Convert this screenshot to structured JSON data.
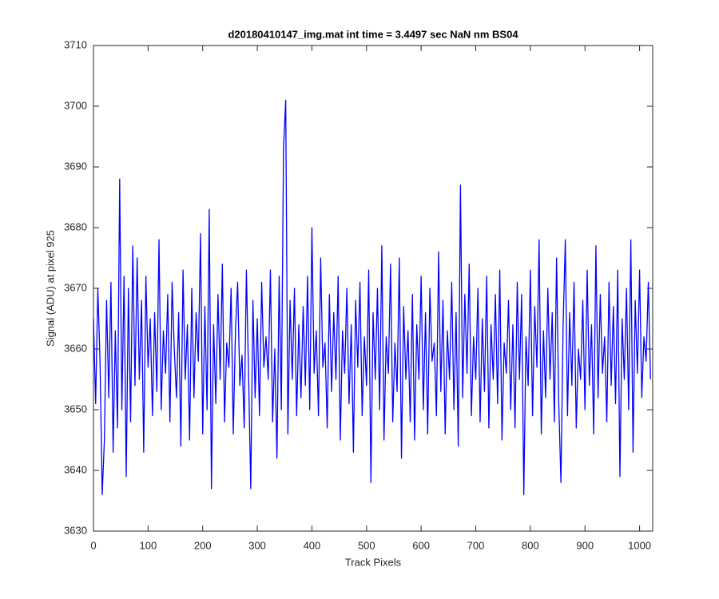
{
  "chart_data": {
    "type": "line",
    "title": "d20180410147_img.mat int time = 3.4497 sec  NaN nm BS04",
    "x_label": "Track Pixels",
    "y_label": "Signal (ADU) at pixel 925",
    "xlim": [
      0,
      1024
    ],
    "ylim": [
      3630,
      3710
    ],
    "xticks": [
      0,
      100,
      200,
      300,
      400,
      500,
      600,
      700,
      800,
      900,
      1000
    ],
    "yticks": [
      3630,
      3640,
      3650,
      3660,
      3670,
      3680,
      3690,
      3700,
      3710
    ],
    "grid": false,
    "x": [
      0,
      4,
      8,
      12,
      16,
      20,
      24,
      28,
      32,
      36,
      40,
      44,
      48,
      52,
      56,
      60,
      64,
      68,
      72,
      76,
      80,
      84,
      88,
      92,
      96,
      100,
      104,
      108,
      112,
      116,
      120,
      124,
      128,
      132,
      136,
      140,
      144,
      148,
      152,
      156,
      160,
      164,
      168,
      172,
      176,
      180,
      184,
      188,
      192,
      196,
      200,
      204,
      208,
      212,
      216,
      220,
      224,
      228,
      232,
      236,
      240,
      244,
      248,
      252,
      256,
      260,
      264,
      268,
      272,
      276,
      280,
      284,
      288,
      292,
      296,
      300,
      304,
      308,
      312,
      316,
      320,
      324,
      328,
      332,
      336,
      340,
      344,
      348,
      352,
      356,
      360,
      364,
      368,
      372,
      376,
      380,
      384,
      388,
      392,
      396,
      400,
      404,
      408,
      412,
      416,
      420,
      424,
      428,
      432,
      436,
      440,
      444,
      448,
      452,
      456,
      460,
      464,
      468,
      472,
      476,
      480,
      484,
      488,
      492,
      496,
      500,
      504,
      508,
      512,
      516,
      520,
      524,
      528,
      532,
      536,
      540,
      544,
      548,
      552,
      556,
      560,
      564,
      568,
      572,
      576,
      580,
      584,
      588,
      592,
      596,
      600,
      604,
      608,
      612,
      616,
      620,
      624,
      628,
      632,
      636,
      640,
      644,
      648,
      652,
      656,
      660,
      664,
      668,
      672,
      676,
      680,
      684,
      688,
      692,
      696,
      700,
      704,
      708,
      712,
      716,
      720,
      724,
      728,
      732,
      736,
      740,
      744,
      748,
      752,
      756,
      760,
      764,
      768,
      772,
      776,
      780,
      784,
      788,
      792,
      796,
      800,
      804,
      808,
      812,
      816,
      820,
      824,
      828,
      832,
      836,
      840,
      844,
      848,
      852,
      856,
      860,
      864,
      868,
      872,
      876,
      880,
      884,
      888,
      892,
      896,
      900,
      904,
      908,
      912,
      916,
      920,
      924,
      928,
      932,
      936,
      940,
      944,
      948,
      952,
      956,
      960,
      964,
      968,
      972,
      976,
      980,
      984,
      988,
      992,
      996,
      1000,
      1004,
      1008,
      1012,
      1016,
      1020
    ],
    "series": [
      {
        "color": "#0000ff",
        "values": [
          3665,
          3651,
          3670,
          3658,
          3636,
          3645,
          3668,
          3652,
          3671,
          3643,
          3663,
          3647,
          3688,
          3650,
          3672,
          3639,
          3670,
          3648,
          3677,
          3654,
          3675,
          3655,
          3668,
          3643,
          3672,
          3657,
          3665,
          3649,
          3666,
          3653,
          3678,
          3650,
          3663,
          3656,
          3669,
          3648,
          3671,
          3660,
          3652,
          3666,
          3644,
          3673,
          3655,
          3664,
          3645,
          3670,
          3652,
          3666,
          3658,
          3679,
          3646,
          3667,
          3650,
          3683,
          3637,
          3664,
          3651,
          3669,
          3655,
          3674,
          3648,
          3661,
          3657,
          3670,
          3646,
          3663,
          3671,
          3654,
          3659,
          3647,
          3673,
          3656,
          3637,
          3668,
          3652,
          3665,
          3649,
          3671,
          3657,
          3662,
          3655,
          3673,
          3648,
          3660,
          3642,
          3672,
          3650,
          3693,
          3701,
          3646,
          3668,
          3655,
          3670,
          3649,
          3664,
          3652,
          3667,
          3654,
          3672,
          3650,
          3680,
          3656,
          3663,
          3649,
          3675,
          3657,
          3661,
          3647,
          3669,
          3653,
          3666,
          3655,
          3672,
          3645,
          3663,
          3656,
          3670,
          3651,
          3664,
          3643,
          3668,
          3657,
          3671,
          3649,
          3662,
          3654,
          3673,
          3638,
          3666,
          3655,
          3670,
          3650,
          3677,
          3645,
          3662,
          3656,
          3674,
          3648,
          3661,
          3653,
          3675,
          3642,
          3667,
          3655,
          3663,
          3648,
          3669,
          3645,
          3664,
          3655,
          3672,
          3650,
          3666,
          3646,
          3670,
          3658,
          3661,
          3649,
          3676,
          3653,
          3668,
          3646,
          3663,
          3655,
          3671,
          3650,
          3666,
          3644,
          3687,
          3652,
          3669,
          3656,
          3674,
          3649,
          3662,
          3655,
          3670,
          3648,
          3665,
          3653,
          3672,
          3647,
          3664,
          3655,
          3669,
          3651,
          3673,
          3645,
          3661,
          3656,
          3668,
          3650,
          3664,
          3647,
          3671,
          3655,
          3669,
          3636,
          3662,
          3654,
          3673,
          3649,
          3667,
          3657,
          3678,
          3646,
          3663,
          3652,
          3670,
          3655,
          3666,
          3648,
          3675,
          3651,
          3638,
          3664,
          3678,
          3649,
          3666,
          3654,
          3671,
          3647,
          3660,
          3655,
          3668,
          3650,
          3673,
          3654,
          3664,
          3646,
          3677,
          3652,
          3669,
          3656,
          3662,
          3648,
          3671,
          3654,
          3667,
          3651,
          3673,
          3639,
          3665,
          3655,
          3670,
          3650,
          3678,
          3643,
          3668,
          3656,
          3673,
          3652,
          3662,
          3658,
          3671,
          3655
        ]
      }
    ]
  }
}
